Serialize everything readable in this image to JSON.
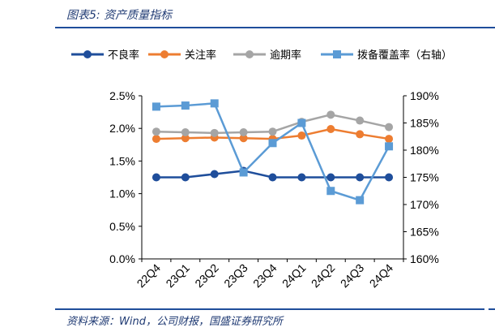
{
  "header": {
    "title": "图表5:  资产质量指标"
  },
  "footer": {
    "source": "资料来源：Wind，公司财报，国盛证券研究所"
  },
  "chart_data": {
    "type": "line",
    "categories": [
      "22Q4",
      "23Q1",
      "23Q2",
      "23Q3",
      "23Q4",
      "24Q1",
      "24Q2",
      "24Q3",
      "24Q4"
    ],
    "y_left": {
      "ticks": [
        "0.0%",
        "0.5%",
        "1.0%",
        "1.5%",
        "2.0%",
        "2.5%"
      ],
      "range": [
        0,
        2.5
      ],
      "unit": "%"
    },
    "y_right": {
      "ticks": [
        "160%",
        "165%",
        "170%",
        "175%",
        "180%",
        "185%",
        "190%"
      ],
      "range": [
        160,
        190
      ],
      "unit": "%"
    },
    "grid": false,
    "legend_position": "top",
    "series": [
      {
        "name": "不良率",
        "axis": "left",
        "color": "#1f4e9b",
        "values": [
          1.25,
          1.25,
          1.3,
          1.35,
          1.25,
          1.25,
          1.25,
          1.25,
          1.25
        ]
      },
      {
        "name": "关注率",
        "axis": "left",
        "color": "#ed7d31",
        "values": [
          1.84,
          1.85,
          1.86,
          1.85,
          1.84,
          1.89,
          1.99,
          1.91,
          1.84
        ]
      },
      {
        "name": "逾期率",
        "axis": "left",
        "color": "#a5a5a5",
        "values": [
          1.95,
          1.94,
          1.93,
          1.94,
          1.95,
          2.1,
          2.21,
          2.12,
          2.02
        ]
      },
      {
        "name": "拨备覆盖率（右轴）",
        "axis": "right",
        "color": "#5b9bd5",
        "values": [
          188.0,
          188.2,
          188.6,
          175.9,
          181.3,
          185.0,
          172.5,
          170.8,
          180.7
        ]
      }
    ]
  }
}
